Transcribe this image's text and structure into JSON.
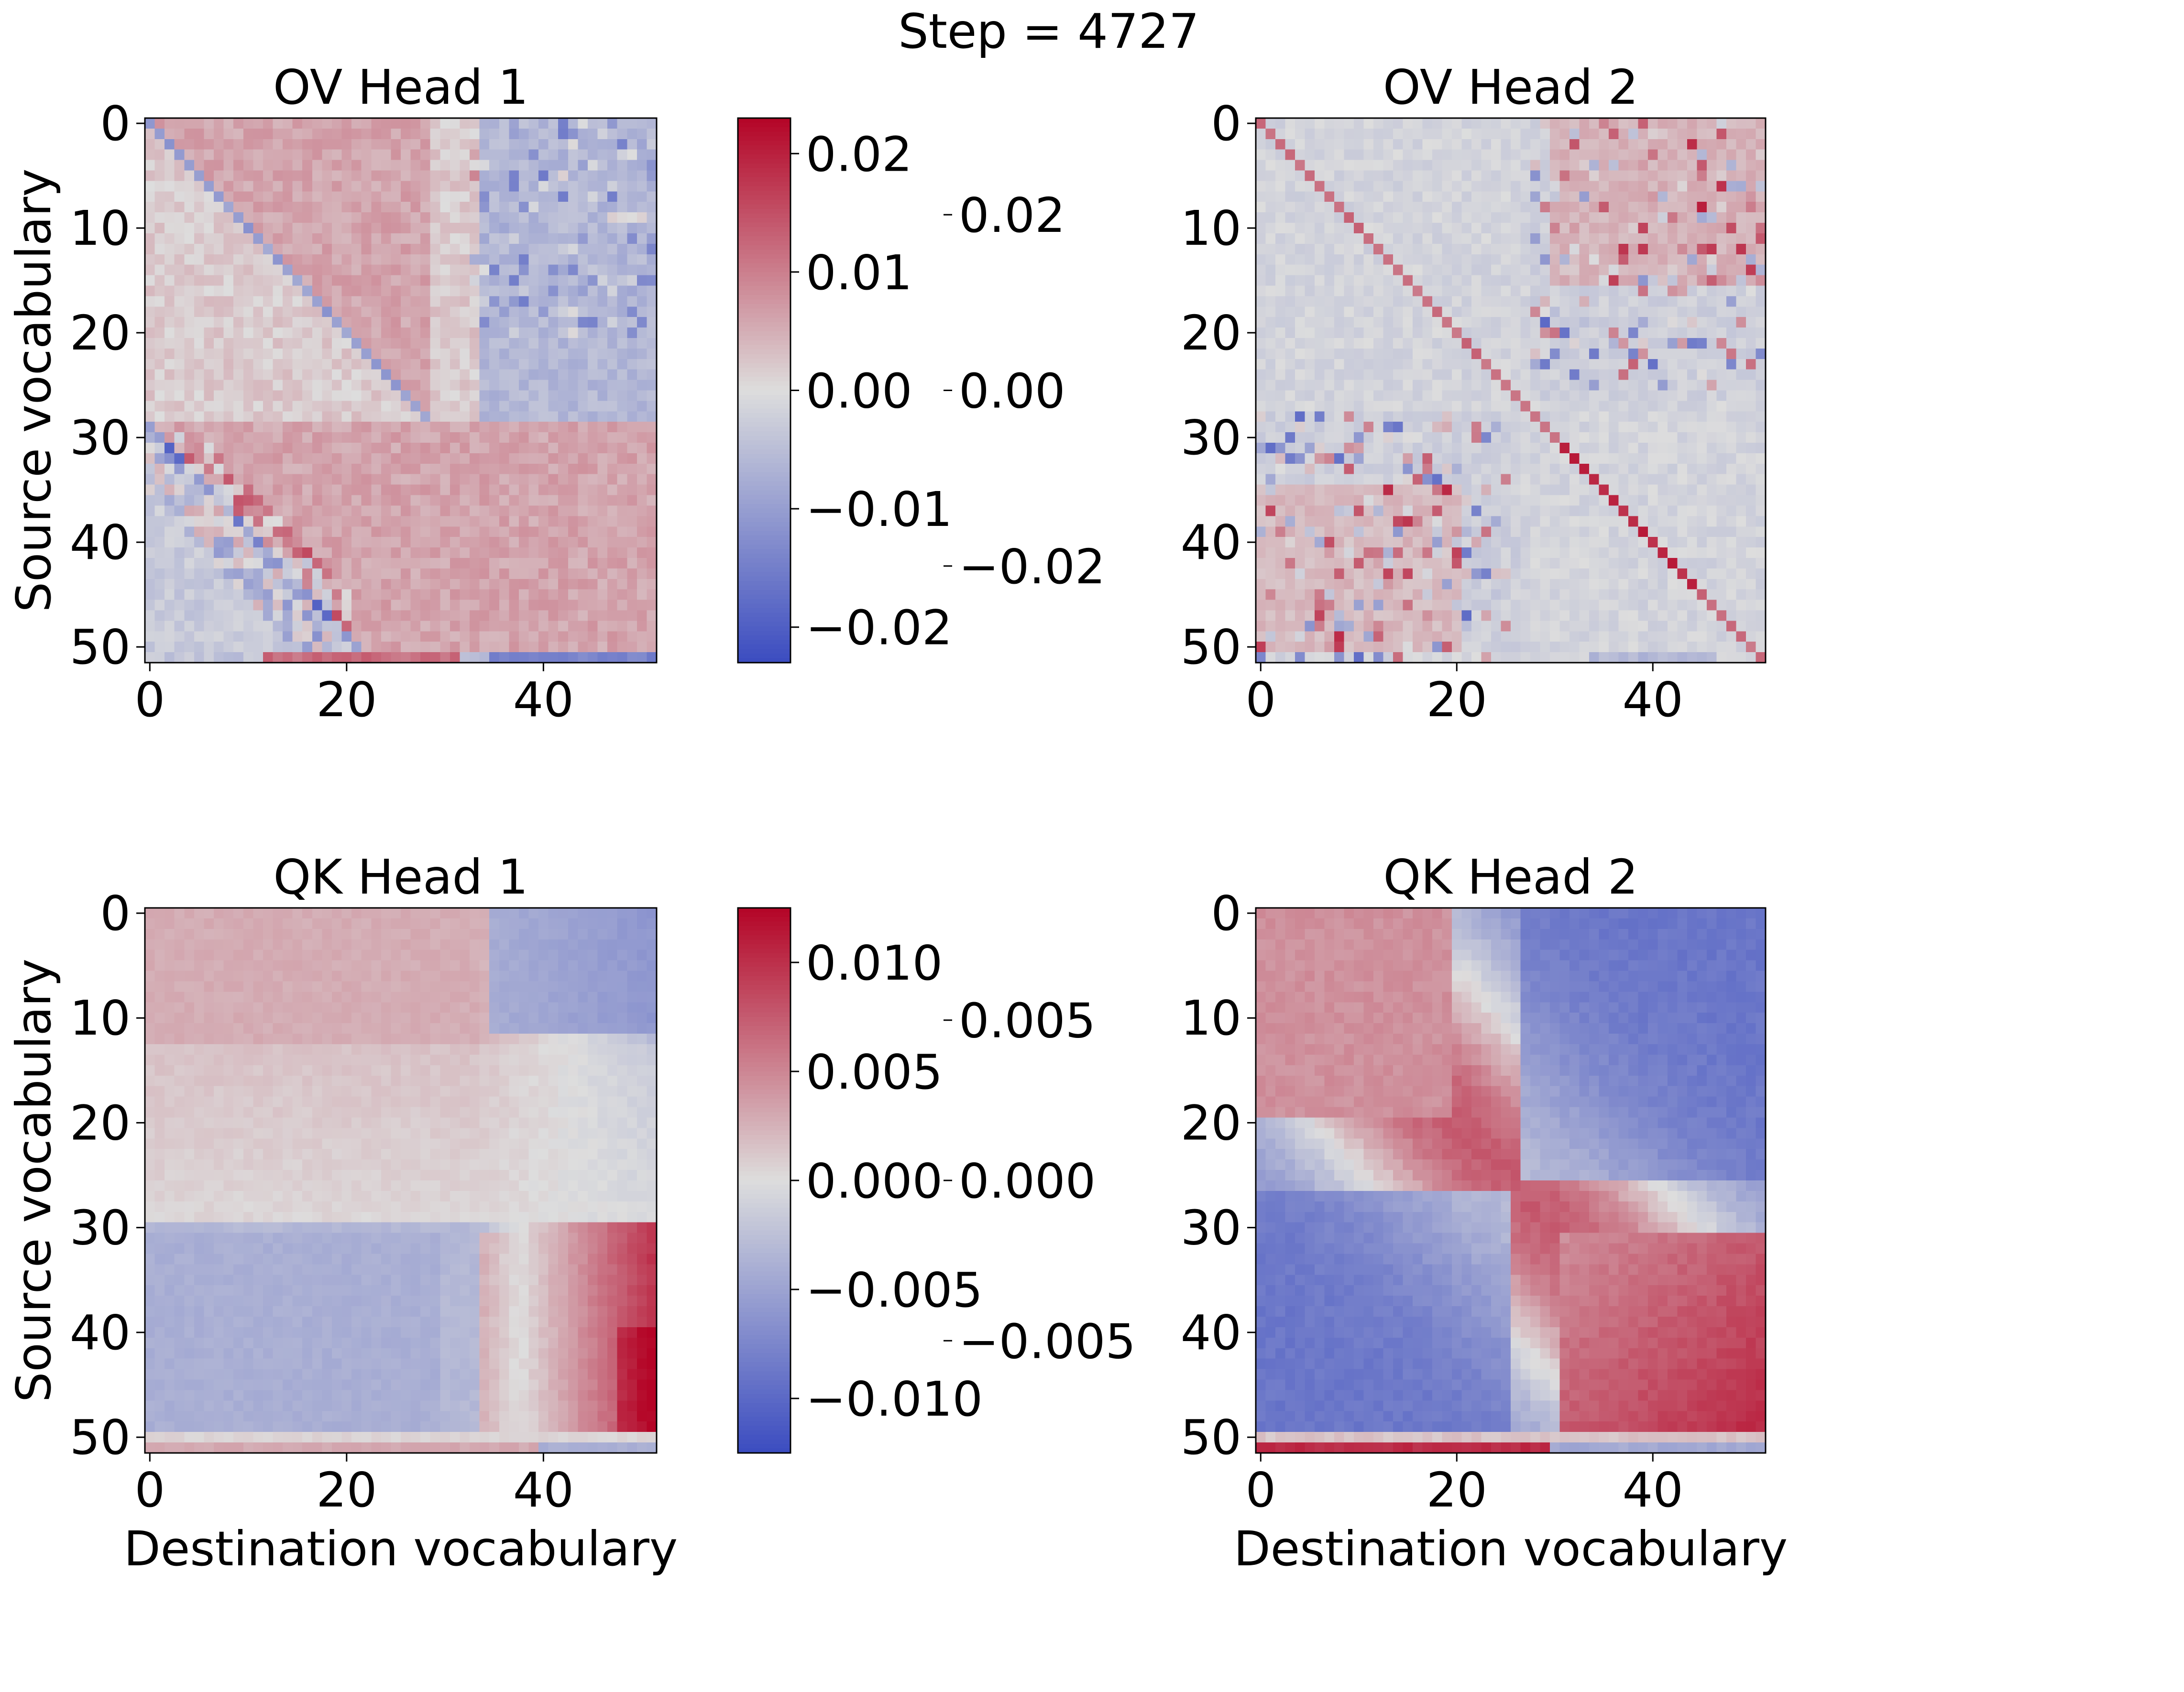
{
  "figure_title": "Step = 4727",
  "colormap": "coolwarm",
  "colors": {
    "cold": "#3b4cc0",
    "neutral": "#dddddd",
    "hot": "#b40426"
  },
  "chart_data": [
    {
      "type": "heatmap",
      "title": "OV Head 1",
      "matrix_size": 52,
      "pattern": "ov1",
      "xlabel": "",
      "ylabel": "Source vocabulary",
      "xticks": [
        "0",
        "20",
        "40"
      ],
      "xtick_values": [
        0,
        20,
        40
      ],
      "yticks": [
        "0",
        "10",
        "20",
        "30",
        "40",
        "50"
      ],
      "ytick_values": [
        0,
        10,
        20,
        30,
        40,
        50
      ],
      "xlim": [
        -0.5,
        51.5
      ],
      "ylim": [
        51.5,
        -0.5
      ],
      "vmin": -0.023,
      "vmax": 0.023,
      "colorbar_ticks": [
        "0.02",
        "0.01",
        "0.00",
        "−0.01",
        "−0.02"
      ],
      "colorbar_values": [
        0.02,
        0.01,
        0.0,
        -0.01,
        -0.02
      ]
    },
    {
      "type": "heatmap",
      "title": "OV Head 2",
      "matrix_size": 52,
      "pattern": "ov2",
      "xlabel": "",
      "ylabel": "",
      "xticks": [
        "0",
        "20",
        "40"
      ],
      "xtick_values": [
        0,
        20,
        40
      ],
      "yticks": [
        "0",
        "10",
        "20",
        "30",
        "40",
        "50"
      ],
      "ytick_values": [
        0,
        10,
        20,
        30,
        40,
        50
      ],
      "xlim": [
        -0.5,
        51.5
      ],
      "ylim": [
        51.5,
        -0.5
      ],
      "vmin": -0.031,
      "vmax": 0.031,
      "colorbar_ticks": [
        "0.02",
        "0.00",
        "−0.02"
      ],
      "colorbar_values": [
        0.02,
        0.0,
        -0.02
      ]
    },
    {
      "type": "heatmap",
      "title": "QK Head 1",
      "matrix_size": 52,
      "pattern": "qk1",
      "xlabel": "Destination vocabulary",
      "ylabel": "Source vocabulary",
      "xticks": [
        "0",
        "20",
        "40"
      ],
      "xtick_values": [
        0,
        20,
        40
      ],
      "yticks": [
        "0",
        "10",
        "20",
        "30",
        "40",
        "50"
      ],
      "ytick_values": [
        0,
        10,
        20,
        30,
        40,
        50
      ],
      "xlim": [
        -0.5,
        51.5
      ],
      "ylim": [
        51.5,
        -0.5
      ],
      "vmin": -0.0125,
      "vmax": 0.0125,
      "colorbar_ticks": [
        "0.010",
        "0.005",
        "0.000",
        "−0.005",
        "−0.010"
      ],
      "colorbar_values": [
        0.01,
        0.005,
        0.0,
        -0.005,
        -0.01
      ]
    },
    {
      "type": "heatmap",
      "title": "QK Head 2",
      "matrix_size": 52,
      "pattern": "qk2",
      "xlabel": "Destination vocabulary",
      "ylabel": "",
      "xticks": [
        "0",
        "20",
        "40"
      ],
      "xtick_values": [
        0,
        20,
        40
      ],
      "yticks": [
        "0",
        "10",
        "20",
        "30",
        "40",
        "50"
      ],
      "ytick_values": [
        0,
        10,
        20,
        30,
        40,
        50
      ],
      "xlim": [
        -0.5,
        51.5
      ],
      "ylim": [
        51.5,
        -0.5
      ],
      "vmin": -0.0085,
      "vmax": 0.0085,
      "colorbar_ticks": [
        "0.005",
        "0.000",
        "−0.005"
      ],
      "colorbar_values": [
        0.005,
        0.0,
        -0.005
      ]
    }
  ]
}
